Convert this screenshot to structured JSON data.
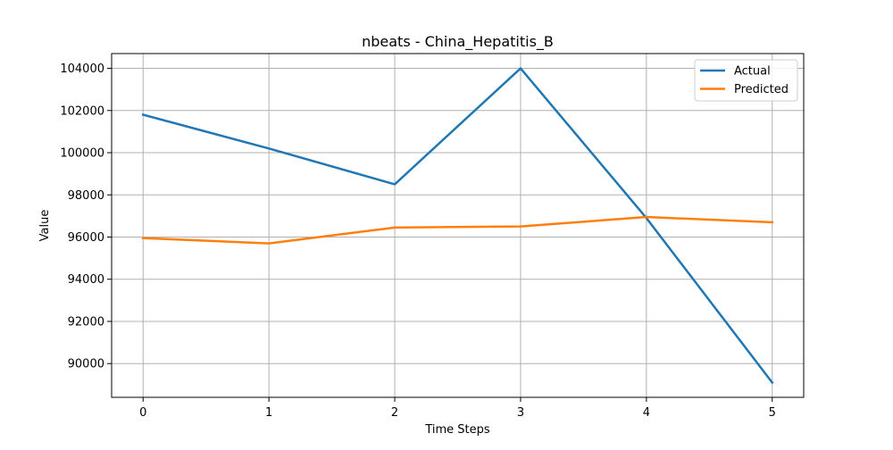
{
  "chart_data": {
    "type": "line",
    "title": "nbeats - China_Hepatitis_B",
    "xlabel": "Time Steps",
    "ylabel": "Value",
    "x": [
      0,
      1,
      2,
      3,
      4,
      5
    ],
    "x_tick_labels": [
      "0",
      "1",
      "2",
      "3",
      "4",
      "5"
    ],
    "y_ticks": [
      90000,
      92000,
      94000,
      96000,
      98000,
      100000,
      102000,
      104000
    ],
    "y_tick_labels": [
      "90000",
      "92000",
      "94000",
      "96000",
      "98000",
      "100000",
      "102000",
      "104000"
    ],
    "xlim": [
      -0.25,
      5.25
    ],
    "ylim": [
      88400,
      104700
    ],
    "grid": true,
    "legend_position": "top-right",
    "series": [
      {
        "name": "Actual",
        "color": "#1f77b4",
        "values": [
          101800,
          100200,
          98500,
          104000,
          96900,
          89100
        ]
      },
      {
        "name": "Predicted",
        "color": "#ff7f0e",
        "values": [
          95950,
          95700,
          96450,
          96500,
          96950,
          96700
        ]
      }
    ]
  }
}
